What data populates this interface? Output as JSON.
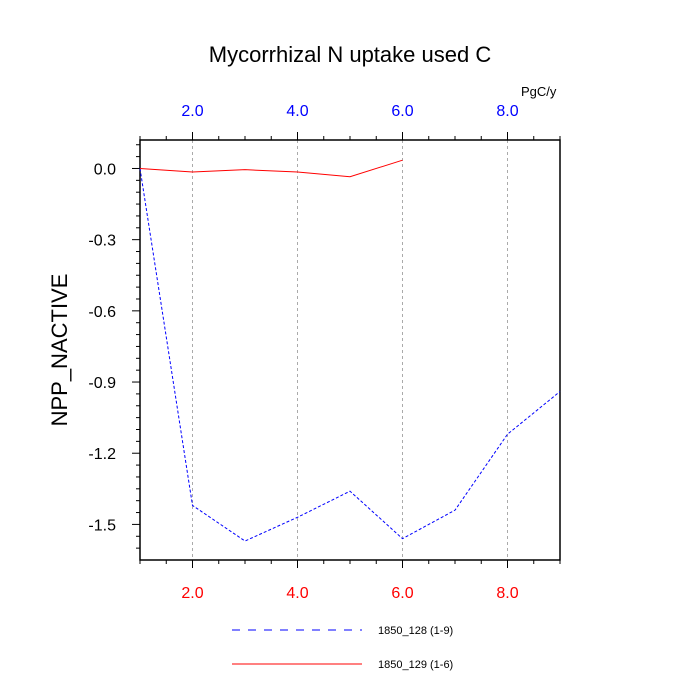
{
  "chart_data": {
    "type": "line",
    "title": "Mycorrhizal N uptake used C",
    "ylabel": "NPP_NACTIVE",
    "top_axis_units": "PgC/y",
    "xlim": [
      1,
      9
    ],
    "ylim": [
      -1.65,
      0.12
    ],
    "x_ticks": [
      "2.0",
      "4.0",
      "6.0",
      "8.0"
    ],
    "y_ticks": [
      "0.0",
      "-0.3",
      "-0.6",
      "-0.9",
      "-1.2",
      "-1.5"
    ],
    "bottom_tick_color": "#ff0000",
    "top_tick_color": "#0000ff",
    "grid": "vertical dashed",
    "legend_position": "bottom",
    "series": [
      {
        "name": "1850_128 (1-9)",
        "color": "#0000ff",
        "style": "dashed",
        "x": [
          1,
          2,
          3,
          4,
          5,
          6,
          7,
          8,
          9
        ],
        "values": [
          0.0,
          -1.42,
          -1.57,
          -1.47,
          -1.36,
          -1.56,
          -1.44,
          -1.12,
          -0.94
        ]
      },
      {
        "name": "1850_129 (1-6)",
        "color": "#ff0000",
        "style": "solid",
        "x": [
          1,
          2,
          3,
          4,
          5,
          6
        ],
        "values": [
          0.0,
          -0.015,
          -0.005,
          -0.015,
          -0.035,
          0.035
        ]
      }
    ]
  }
}
